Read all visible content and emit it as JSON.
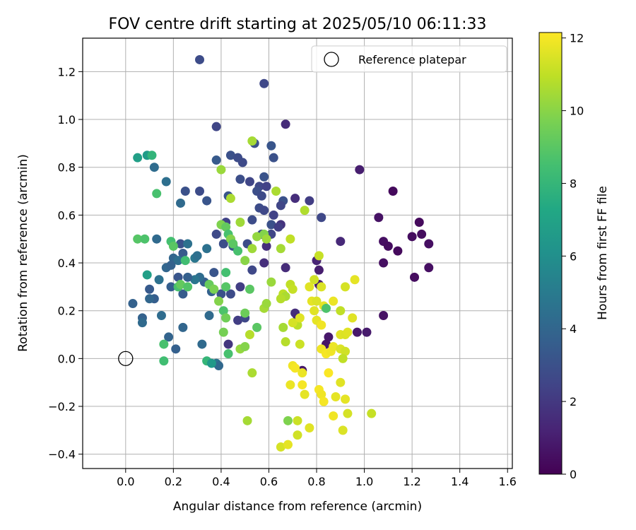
{
  "chart_data": {
    "type": "scatter",
    "title": "FOV centre drift starting at 2025/05/10 06:11:33",
    "xlabel": "Angular distance from reference (arcmin)",
    "ylabel": "Rotation from reference (arcmin)",
    "xlim": [
      -0.18,
      1.62
    ],
    "ylim": [
      -0.46,
      1.34
    ],
    "xticks": [
      0.0,
      0.2,
      0.4,
      0.6,
      0.8,
      1.0,
      1.2,
      1.4,
      1.6
    ],
    "yticks": [
      -0.4,
      -0.2,
      0.0,
      0.2,
      0.4,
      0.6,
      0.8,
      1.0,
      1.2
    ],
    "grid": true,
    "colormap": "viridis",
    "colorbar": {
      "label": "Hours from first FF file",
      "range": [
        0,
        12.15
      ],
      "ticks": [
        0,
        2,
        4,
        6,
        8,
        10,
        12
      ]
    },
    "legend": {
      "placement": "top-right",
      "entries": [
        "Reference platepar"
      ]
    },
    "reference_point": {
      "x": 0.0,
      "y": 0.0
    },
    "points": [
      {
        "x": 0.31,
        "y": 1.25,
        "t": 2.8
      },
      {
        "x": 0.58,
        "y": 1.15,
        "t": 2.6
      },
      {
        "x": 0.38,
        "y": 0.97,
        "t": 2.5
      },
      {
        "x": 0.67,
        "y": 0.98,
        "t": 1.5
      },
      {
        "x": 0.54,
        "y": 0.9,
        "t": 3.0
      },
      {
        "x": 0.61,
        "y": 0.89,
        "t": 3.2
      },
      {
        "x": 0.44,
        "y": 0.85,
        "t": 3.0
      },
      {
        "x": 0.47,
        "y": 0.84,
        "t": 2.8
      },
      {
        "x": 0.49,
        "y": 0.82,
        "t": 2.7
      },
      {
        "x": 0.38,
        "y": 0.83,
        "t": 3.4
      },
      {
        "x": 0.62,
        "y": 0.84,
        "t": 3.0
      },
      {
        "x": 0.52,
        "y": 0.74,
        "t": 2.5
      },
      {
        "x": 0.48,
        "y": 0.75,
        "t": 2.9
      },
      {
        "x": 0.58,
        "y": 0.76,
        "t": 3.1
      },
      {
        "x": 0.56,
        "y": 0.72,
        "t": 2.6
      },
      {
        "x": 0.59,
        "y": 0.72,
        "t": 2.4
      },
      {
        "x": 0.55,
        "y": 0.7,
        "t": 2.9
      },
      {
        "x": 0.57,
        "y": 0.68,
        "t": 2.7
      },
      {
        "x": 0.43,
        "y": 0.68,
        "t": 3.2
      },
      {
        "x": 0.31,
        "y": 0.7,
        "t": 2.8
      },
      {
        "x": 0.25,
        "y": 0.7,
        "t": 3.0
      },
      {
        "x": 0.34,
        "y": 0.66,
        "t": 3.2
      },
      {
        "x": 0.23,
        "y": 0.65,
        "t": 4.2
      },
      {
        "x": 0.66,
        "y": 0.66,
        "t": 3.0
      },
      {
        "x": 0.71,
        "y": 0.67,
        "t": 1.6
      },
      {
        "x": 0.77,
        "y": 0.66,
        "t": 2.2
      },
      {
        "x": 0.65,
        "y": 0.64,
        "t": 2.5
      },
      {
        "x": 0.56,
        "y": 0.63,
        "t": 2.8
      },
      {
        "x": 0.58,
        "y": 0.62,
        "t": 2.6
      },
      {
        "x": 0.62,
        "y": 0.6,
        "t": 2.4
      },
      {
        "x": 0.53,
        "y": 0.58,
        "t": 2.8
      },
      {
        "x": 0.82,
        "y": 0.59,
        "t": 2.6
      },
      {
        "x": 0.61,
        "y": 0.56,
        "t": 3.0
      },
      {
        "x": 0.65,
        "y": 0.56,
        "t": 1.8
      },
      {
        "x": 0.42,
        "y": 0.57,
        "t": 2.4
      },
      {
        "x": 0.38,
        "y": 0.52,
        "t": 2.7
      },
      {
        "x": 0.64,
        "y": 0.55,
        "t": 2.2
      },
      {
        "x": 0.61,
        "y": 0.52,
        "t": 2.5
      },
      {
        "x": 0.57,
        "y": 0.52,
        "t": 2.8
      },
      {
        "x": 0.44,
        "y": 0.5,
        "t": 3.0
      },
      {
        "x": 0.41,
        "y": 0.48,
        "t": 2.9
      },
      {
        "x": 0.45,
        "y": 0.47,
        "t": 3.2
      },
      {
        "x": 0.51,
        "y": 0.48,
        "t": 2.8
      },
      {
        "x": 0.59,
        "y": 0.47,
        "t": 1.6
      },
      {
        "x": 0.23,
        "y": 0.48,
        "t": 3.0
      },
      {
        "x": 0.24,
        "y": 0.44,
        "t": 3.4
      },
      {
        "x": 0.26,
        "y": 0.48,
        "t": 4.5
      },
      {
        "x": 0.2,
        "y": 0.42,
        "t": 4.0
      },
      {
        "x": 0.22,
        "y": 0.41,
        "t": 4.4
      },
      {
        "x": 0.17,
        "y": 0.38,
        "t": 4.0
      },
      {
        "x": 0.13,
        "y": 0.5,
        "t": 4.2
      },
      {
        "x": 0.34,
        "y": 0.46,
        "t": 4.5
      },
      {
        "x": 0.29,
        "y": 0.42,
        "t": 4.8
      },
      {
        "x": 0.37,
        "y": 0.36,
        "t": 3.2
      },
      {
        "x": 0.53,
        "y": 0.37,
        "t": 2.6
      },
      {
        "x": 0.58,
        "y": 0.4,
        "t": 1.6
      },
      {
        "x": 0.67,
        "y": 0.38,
        "t": 1.5
      },
      {
        "x": 0.8,
        "y": 0.41,
        "t": 1.2
      },
      {
        "x": 0.81,
        "y": 0.37,
        "t": 1.0
      },
      {
        "x": 0.9,
        "y": 0.49,
        "t": 1.4
      },
      {
        "x": 0.98,
        "y": 0.79,
        "t": 1.0
      },
      {
        "x": 1.12,
        "y": 0.7,
        "t": 0.3
      },
      {
        "x": 1.06,
        "y": 0.59,
        "t": 0.6
      },
      {
        "x": 1.08,
        "y": 0.49,
        "t": 0.5
      },
      {
        "x": 1.1,
        "y": 0.47,
        "t": 0.4
      },
      {
        "x": 1.14,
        "y": 0.45,
        "t": 0.3
      },
      {
        "x": 1.2,
        "y": 0.51,
        "t": 0.4
      },
      {
        "x": 1.23,
        "y": 0.57,
        "t": 0.3
      },
      {
        "x": 1.24,
        "y": 0.52,
        "t": 0.4
      },
      {
        "x": 1.27,
        "y": 0.48,
        "t": 0.5
      },
      {
        "x": 1.08,
        "y": 0.4,
        "t": 0.5
      },
      {
        "x": 1.21,
        "y": 0.34,
        "t": 0.4
      },
      {
        "x": 1.27,
        "y": 0.38,
        "t": 0.5
      },
      {
        "x": 1.08,
        "y": 0.18,
        "t": 0.6
      },
      {
        "x": 0.97,
        "y": 0.11,
        "t": 0.8
      },
      {
        "x": 1.01,
        "y": 0.11,
        "t": 0.9
      },
      {
        "x": 0.81,
        "y": 0.31,
        "t": 1.0
      },
      {
        "x": 0.71,
        "y": 0.19,
        "t": 1.6
      },
      {
        "x": 0.72,
        "y": 0.17,
        "t": 1.3
      },
      {
        "x": 0.85,
        "y": 0.09,
        "t": 0.8
      },
      {
        "x": 0.84,
        "y": 0.06,
        "t": 0.7
      },
      {
        "x": 0.74,
        "y": -0.05,
        "t": 0.8
      },
      {
        "x": 0.48,
        "y": 0.3,
        "t": 2.2
      },
      {
        "x": 0.44,
        "y": 0.27,
        "t": 2.8
      },
      {
        "x": 0.4,
        "y": 0.27,
        "t": 3.0
      },
      {
        "x": 0.47,
        "y": 0.16,
        "t": 2.2
      },
      {
        "x": 0.5,
        "y": 0.17,
        "t": 2.6
      },
      {
        "x": 0.43,
        "y": 0.06,
        "t": 1.9
      },
      {
        "x": 0.35,
        "y": 0.18,
        "t": 4.2
      },
      {
        "x": 0.36,
        "y": 0.28,
        "t": 3.8
      },
      {
        "x": 0.33,
        "y": 0.32,
        "t": 3.6
      },
      {
        "x": 0.31,
        "y": 0.34,
        "t": 4.3
      },
      {
        "x": 0.29,
        "y": 0.33,
        "t": 4.7
      },
      {
        "x": 0.3,
        "y": 0.43,
        "t": 4.4
      },
      {
        "x": 0.26,
        "y": 0.34,
        "t": 3.7
      },
      {
        "x": 0.22,
        "y": 0.34,
        "t": 3.2
      },
      {
        "x": 0.19,
        "y": 0.3,
        "t": 3.6
      },
      {
        "x": 0.19,
        "y": 0.39,
        "t": 3.8
      },
      {
        "x": 0.14,
        "y": 0.33,
        "t": 4.5
      },
      {
        "x": 0.12,
        "y": 0.25,
        "t": 3.6
      },
      {
        "x": 0.1,
        "y": 0.25,
        "t": 4.0
      },
      {
        "x": 0.1,
        "y": 0.29,
        "t": 3.4
      },
      {
        "x": 0.07,
        "y": 0.17,
        "t": 3.8
      },
      {
        "x": 0.07,
        "y": 0.15,
        "t": 4.2
      },
      {
        "x": 0.03,
        "y": 0.23,
        "t": 3.8
      },
      {
        "x": 0.15,
        "y": 0.18,
        "t": 4.3
      },
      {
        "x": 0.24,
        "y": 0.27,
        "t": 3.5
      },
      {
        "x": 0.24,
        "y": 0.13,
        "t": 4.0
      },
      {
        "x": 0.18,
        "y": 0.09,
        "t": 3.9
      },
      {
        "x": 0.21,
        "y": 0.04,
        "t": 3.7
      },
      {
        "x": 0.32,
        "y": 0.06,
        "t": 4.2
      },
      {
        "x": 0.38,
        "y": -0.02,
        "t": 4.6
      },
      {
        "x": 0.39,
        "y": -0.03,
        "t": 4.1
      },
      {
        "x": 0.12,
        "y": 0.8,
        "t": 4.3
      },
      {
        "x": 0.17,
        "y": 0.74,
        "t": 4.4
      },
      {
        "x": 0.05,
        "y": 0.84,
        "t": 6.8
      },
      {
        "x": 0.09,
        "y": 0.85,
        "t": 6.6
      },
      {
        "x": 0.11,
        "y": 0.85,
        "t": 7.9
      },
      {
        "x": 0.13,
        "y": 0.69,
        "t": 8.6
      },
      {
        "x": 0.05,
        "y": 0.5,
        "t": 8.9
      },
      {
        "x": 0.08,
        "y": 0.5,
        "t": 8.7
      },
      {
        "x": 0.19,
        "y": 0.49,
        "t": 8.5
      },
      {
        "x": 0.2,
        "y": 0.47,
        "t": 9.0
      },
      {
        "x": 0.09,
        "y": 0.35,
        "t": 6.8
      },
      {
        "x": 0.22,
        "y": 0.3,
        "t": 8.6
      },
      {
        "x": 0.23,
        "y": 0.31,
        "t": 9.2
      },
      {
        "x": 0.26,
        "y": 0.3,
        "t": 8.8
      },
      {
        "x": 0.25,
        "y": 0.41,
        "t": 8.4
      },
      {
        "x": 0.16,
        "y": 0.06,
        "t": 8.6
      },
      {
        "x": 0.16,
        "y": -0.01,
        "t": 8.4
      },
      {
        "x": 0.34,
        "y": -0.01,
        "t": 8.0
      },
      {
        "x": 0.36,
        "y": -0.02,
        "t": 6.5
      },
      {
        "x": 0.35,
        "y": 0.31,
        "t": 9.3
      },
      {
        "x": 0.37,
        "y": 0.29,
        "t": 9.7
      },
      {
        "x": 0.39,
        "y": 0.24,
        "t": 9.9
      },
      {
        "x": 0.42,
        "y": 0.3,
        "t": 8.9
      },
      {
        "x": 0.41,
        "y": 0.2,
        "t": 8.7
      },
      {
        "x": 0.42,
        "y": 0.17,
        "t": 9.5
      },
      {
        "x": 0.41,
        "y": 0.11,
        "t": 9.6
      },
      {
        "x": 0.43,
        "y": 0.02,
        "t": 8.6
      },
      {
        "x": 0.42,
        "y": 0.36,
        "t": 8.5
      },
      {
        "x": 0.4,
        "y": 0.56,
        "t": 9.8
      },
      {
        "x": 0.42,
        "y": 0.55,
        "t": 9.2
      },
      {
        "x": 0.43,
        "y": 0.52,
        "t": 8.6
      },
      {
        "x": 0.44,
        "y": 0.5,
        "t": 9.9
      },
      {
        "x": 0.45,
        "y": 0.48,
        "t": 9.0
      },
      {
        "x": 0.47,
        "y": 0.45,
        "t": 8.6
      },
      {
        "x": 0.48,
        "y": 0.57,
        "t": 10.4
      },
      {
        "x": 0.5,
        "y": 0.41,
        "t": 10.0
      },
      {
        "x": 0.52,
        "y": 0.29,
        "t": 9.0
      },
      {
        "x": 0.5,
        "y": 0.19,
        "t": 9.4
      },
      {
        "x": 0.52,
        "y": 0.1,
        "t": 10.8
      },
      {
        "x": 0.55,
        "y": 0.13,
        "t": 9.0
      },
      {
        "x": 0.48,
        "y": 0.04,
        "t": 10.2
      },
      {
        "x": 0.5,
        "y": 0.05,
        "t": 9.9
      },
      {
        "x": 0.51,
        "y": -0.26,
        "t": 10.5
      },
      {
        "x": 0.53,
        "y": -0.06,
        "t": 10.6
      },
      {
        "x": 0.4,
        "y": 0.79,
        "t": 10.3
      },
      {
        "x": 0.44,
        "y": 0.67,
        "t": 10.6
      },
      {
        "x": 0.53,
        "y": 0.91,
        "t": 10.5
      },
      {
        "x": 0.55,
        "y": 0.51,
        "t": 10.2
      },
      {
        "x": 0.58,
        "y": 0.52,
        "t": 9.9
      },
      {
        "x": 0.59,
        "y": 0.5,
        "t": 10.4
      },
      {
        "x": 0.53,
        "y": 0.46,
        "t": 10.4
      },
      {
        "x": 0.58,
        "y": 0.21,
        "t": 10.5
      },
      {
        "x": 0.59,
        "y": 0.23,
        "t": 10.3
      },
      {
        "x": 0.61,
        "y": 0.32,
        "t": 10.3
      },
      {
        "x": 0.63,
        "y": 0.7,
        "t": 10.6
      },
      {
        "x": 0.65,
        "y": 0.46,
        "t": 10.5
      },
      {
        "x": 0.66,
        "y": 0.27,
        "t": 10.9
      },
      {
        "x": 0.66,
        "y": 0.13,
        "t": 10.5
      },
      {
        "x": 0.67,
        "y": 0.26,
        "t": 10.6
      },
      {
        "x": 0.65,
        "y": 0.25,
        "t": 10.8
      },
      {
        "x": 0.67,
        "y": 0.07,
        "t": 10.8
      },
      {
        "x": 0.68,
        "y": -0.26,
        "t": 9.8
      },
      {
        "x": 0.69,
        "y": 0.5,
        "t": 11.0
      },
      {
        "x": 0.75,
        "y": 0.62,
        "t": 10.7
      },
      {
        "x": 0.69,
        "y": 0.31,
        "t": 11.0
      },
      {
        "x": 0.7,
        "y": 0.29,
        "t": 11.1
      },
      {
        "x": 0.72,
        "y": 0.14,
        "t": 10.9
      },
      {
        "x": 0.7,
        "y": 0.15,
        "t": 11.4
      },
      {
        "x": 0.73,
        "y": 0.17,
        "t": 11.6
      },
      {
        "x": 0.73,
        "y": 0.06,
        "t": 11.2
      },
      {
        "x": 0.72,
        "y": -0.26,
        "t": 11.2
      },
      {
        "x": 0.72,
        "y": -0.32,
        "t": 11.3
      },
      {
        "x": 0.65,
        "y": -0.37,
        "t": 11.4
      },
      {
        "x": 0.68,
        "y": -0.36,
        "t": 11.7
      },
      {
        "x": 0.69,
        "y": -0.11,
        "t": 11.8
      },
      {
        "x": 0.7,
        "y": -0.03,
        "t": 11.9
      },
      {
        "x": 0.71,
        "y": -0.04,
        "t": 12.0
      },
      {
        "x": 0.74,
        "y": -0.06,
        "t": 11.8
      },
      {
        "x": 0.74,
        "y": -0.11,
        "t": 12.0
      },
      {
        "x": 0.75,
        "y": -0.15,
        "t": 11.7
      },
      {
        "x": 0.77,
        "y": -0.29,
        "t": 11.6
      },
      {
        "x": 0.79,
        "y": 0.33,
        "t": 11.3
      },
      {
        "x": 0.77,
        "y": 0.3,
        "t": 11.6
      },
      {
        "x": 0.78,
        "y": 0.24,
        "t": 11.7
      },
      {
        "x": 0.79,
        "y": 0.2,
        "t": 11.6
      },
      {
        "x": 0.8,
        "y": 0.16,
        "t": 11.7
      },
      {
        "x": 0.82,
        "y": 0.14,
        "t": 11.9
      },
      {
        "x": 0.81,
        "y": 0.43,
        "t": 11.1
      },
      {
        "x": 0.82,
        "y": 0.3,
        "t": 11.5
      },
      {
        "x": 0.83,
        "y": 0.22,
        "t": 11.7
      },
      {
        "x": 0.82,
        "y": 0.04,
        "t": 11.9
      },
      {
        "x": 0.84,
        "y": 0.02,
        "t": 12.0
      },
      {
        "x": 0.81,
        "y": -0.13,
        "t": 12.0
      },
      {
        "x": 0.82,
        "y": -0.15,
        "t": 11.9
      },
      {
        "x": 0.83,
        "y": -0.18,
        "t": 12.0
      },
      {
        "x": 0.85,
        "y": -0.06,
        "t": 12.1
      },
      {
        "x": 0.86,
        "y": 0.03,
        "t": 11.9
      },
      {
        "x": 0.87,
        "y": 0.05,
        "t": 11.8
      },
      {
        "x": 0.87,
        "y": 0.24,
        "t": 11.8
      },
      {
        "x": 0.88,
        "y": -0.16,
        "t": 11.7
      },
      {
        "x": 0.87,
        "y": -0.24,
        "t": 11.9
      },
      {
        "x": 0.9,
        "y": 0.1,
        "t": 11.6
      },
      {
        "x": 0.9,
        "y": 0.04,
        "t": 11.5
      },
      {
        "x": 0.9,
        "y": 0.2,
        "t": 11.0
      },
      {
        "x": 0.9,
        "y": -0.1,
        "t": 11.6
      },
      {
        "x": 0.92,
        "y": -0.17,
        "t": 11.7
      },
      {
        "x": 0.92,
        "y": 0.1,
        "t": 11.5
      },
      {
        "x": 0.92,
        "y": 0.3,
        "t": 11.4
      },
      {
        "x": 0.92,
        "y": 0.03,
        "t": 11.3
      },
      {
        "x": 0.93,
        "y": 0.11,
        "t": 11.6
      },
      {
        "x": 0.91,
        "y": -0.3,
        "t": 11.5
      },
      {
        "x": 0.93,
        "y": -0.23,
        "t": 11.4
      },
      {
        "x": 0.95,
        "y": 0.17,
        "t": 11.6
      },
      {
        "x": 0.96,
        "y": 0.33,
        "t": 11.7
      },
      {
        "x": 1.03,
        "y": -0.23,
        "t": 11.1
      },
      {
        "x": 0.84,
        "y": 0.21,
        "t": 8.7
      },
      {
        "x": 0.8,
        "y": 0.24,
        "t": 11.5
      },
      {
        "x": 0.91,
        "y": 0.0,
        "t": 11.0
      }
    ]
  }
}
